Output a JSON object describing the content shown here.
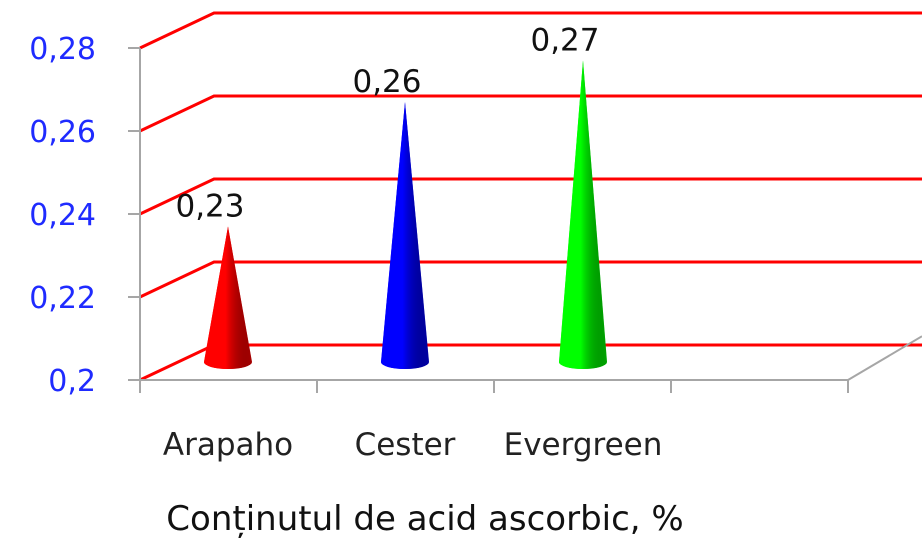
{
  "chart_data": {
    "type": "bar",
    "style": "3d-cone",
    "categories": [
      "Arapaho",
      "Cester",
      "Evergreen"
    ],
    "values": [
      0.23,
      0.26,
      0.27
    ],
    "data_labels": [
      "0,23",
      "0,26",
      "0,27"
    ],
    "colors": [
      "#ff0000",
      "#0000ff",
      "#00ff00"
    ],
    "xlabel": "Conținutul de acid ascorbic, %",
    "ylabel": "",
    "ylim": [
      0.2,
      0.28
    ],
    "yticks": [
      0.2,
      0.22,
      0.24,
      0.26,
      0.28
    ],
    "ytick_labels": [
      "0,2",
      "0,22",
      "0,24",
      "0,26",
      "0,28"
    ],
    "grid": true,
    "gridline_color": "#ff0000",
    "tick_label_color": "#1f2bff",
    "legend": "none"
  }
}
